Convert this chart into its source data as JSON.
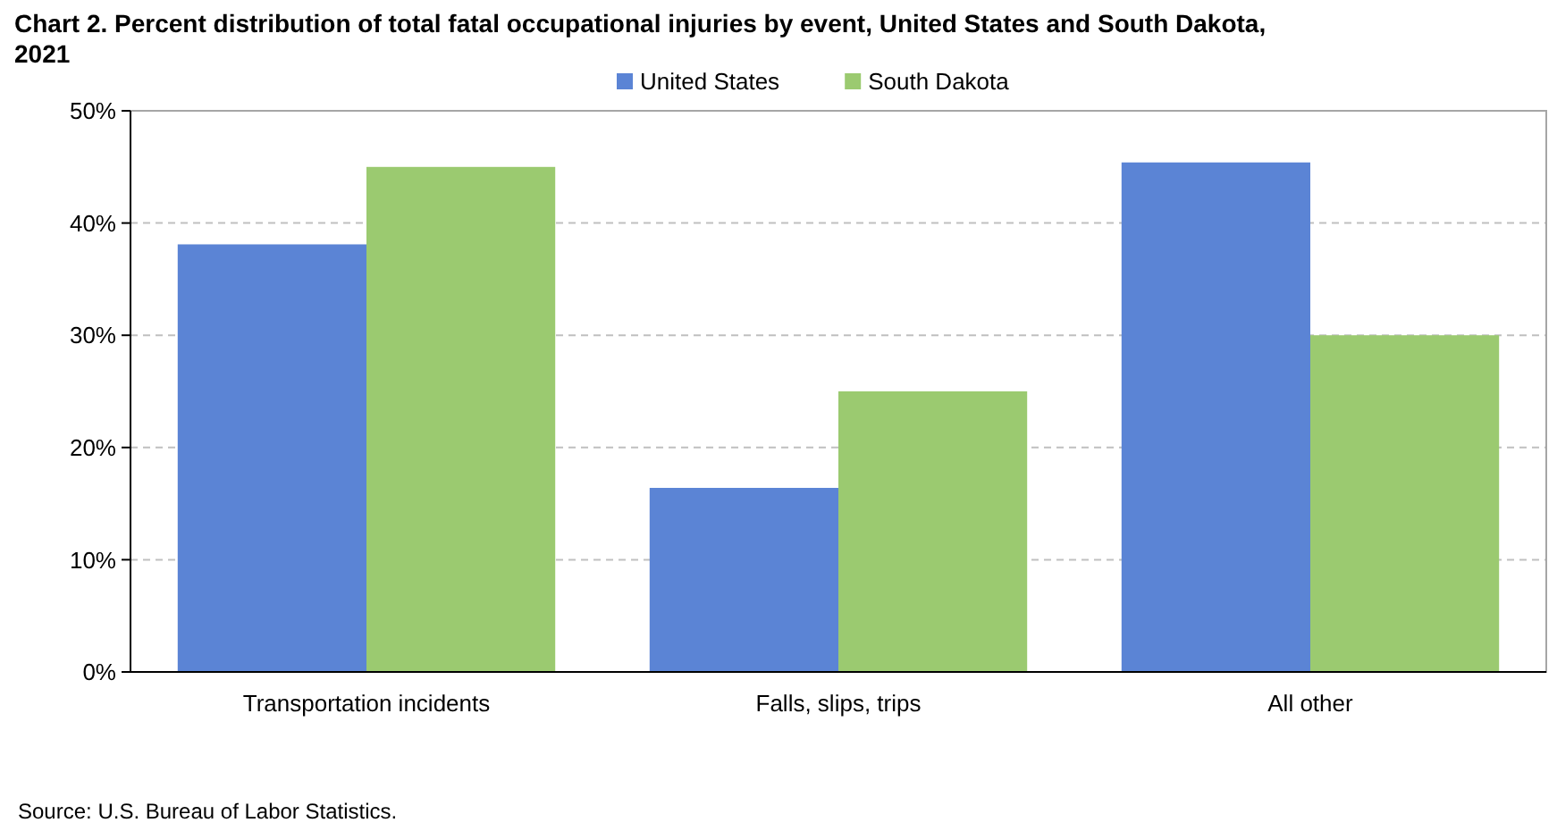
{
  "chart_data": {
    "type": "bar",
    "title": "Chart 2. Percent distribution of total fatal occupational injuries by event, United States and South Dakota, 2021",
    "categories": [
      "Transportation incidents",
      "Falls, slips, trips",
      "All other"
    ],
    "series": [
      {
        "name": "United States",
        "color": "#5b84d5",
        "values": [
          38.1,
          16.4,
          45.4
        ]
      },
      {
        "name": "South Dakota",
        "color": "#9bca70",
        "values": [
          45.0,
          25.0,
          30.0
        ]
      }
    ],
    "ylim": [
      0,
      50
    ],
    "yticks": [
      {
        "value": 0,
        "label": "0%"
      },
      {
        "value": 10,
        "label": "10%"
      },
      {
        "value": 20,
        "label": "20%"
      },
      {
        "value": 30,
        "label": "30%"
      },
      {
        "value": 40,
        "label": "40%"
      },
      {
        "value": 50,
        "label": "50%"
      }
    ],
    "grid": "y",
    "legend": "top",
    "annotations": [
      "Source: U.S. Bureau of Labor Statistics."
    ]
  }
}
